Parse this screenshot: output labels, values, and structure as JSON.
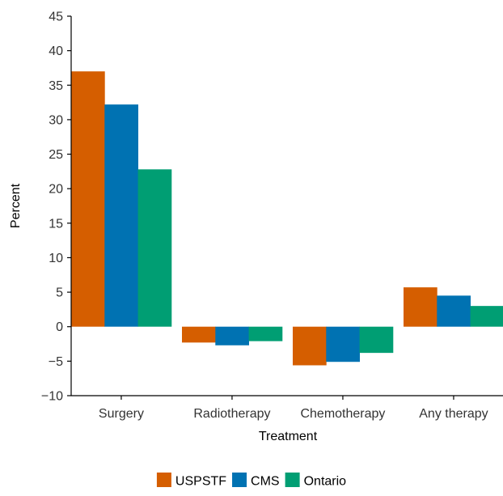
{
  "chart_data": {
    "type": "bar",
    "title": "",
    "xlabel": "Treatment",
    "ylabel": "Percent",
    "ylim": [
      -10,
      45
    ],
    "yticks": [
      -10,
      -5,
      0,
      5,
      10,
      15,
      20,
      25,
      30,
      35,
      40,
      45
    ],
    "ytick_labels": [
      "−10",
      "−5",
      "0",
      "5",
      "10",
      "15",
      "20",
      "25",
      "30",
      "35",
      "40",
      "45"
    ],
    "categories": [
      "Surgery",
      "Radiotherapy",
      "Chemotherapy",
      "Any therapy"
    ],
    "series": [
      {
        "name": "USPSTF",
        "color": "#D55E00",
        "values": [
          37.0,
          -2.3,
          -5.6,
          5.7
        ]
      },
      {
        "name": "CMS",
        "color": "#0072B2",
        "values": [
          32.2,
          -2.7,
          -5.1,
          4.5
        ]
      },
      {
        "name": "Ontario",
        "color": "#009E73",
        "values": [
          22.8,
          -2.1,
          -3.8,
          3.0
        ]
      }
    ],
    "grid": false,
    "legend_position": "bottom"
  }
}
